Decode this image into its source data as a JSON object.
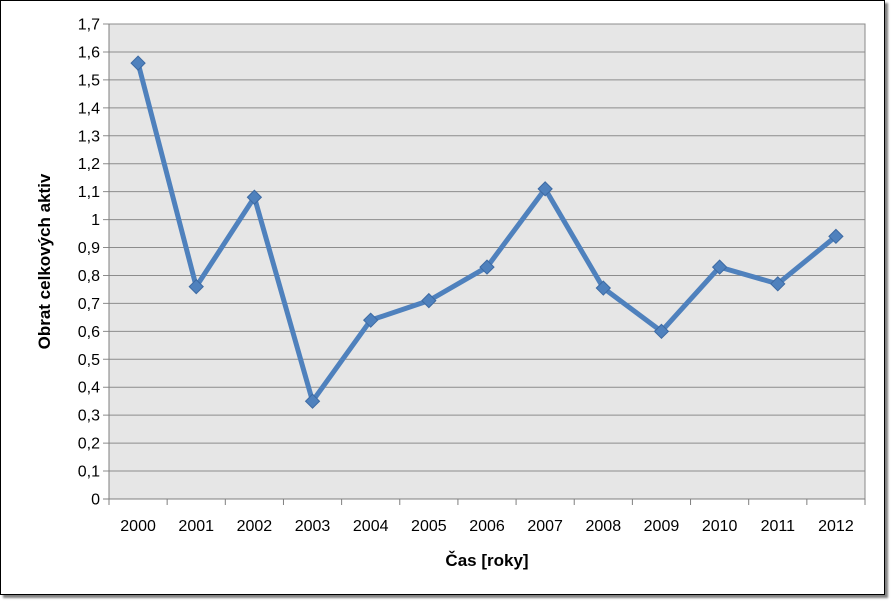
{
  "chart_data": {
    "type": "line",
    "title": "",
    "xlabel": "Čas [roky]",
    "ylabel": "Obrat celkových aktiv",
    "categories": [
      "2000",
      "2001",
      "2002",
      "2003",
      "2004",
      "2005",
      "2006",
      "2007",
      "2008",
      "2009",
      "2010",
      "2011",
      "2012"
    ],
    "series": [
      {
        "values": [
          1.56,
          0.76,
          1.08,
          0.35,
          0.64,
          0.71,
          0.83,
          1.11,
          0.755,
          0.6,
          0.83,
          0.77,
          0.94
        ]
      }
    ],
    "ylim": [
      0,
      1.7
    ],
    "ystep": 0.1,
    "ytick_labels": [
      "0",
      "0,1",
      "0,2",
      "0,3",
      "0,4",
      "0,5",
      "0,6",
      "0,7",
      "0,8",
      "0,9",
      "1",
      "1,1",
      "1,2",
      "1,3",
      "1,4",
      "1,5",
      "1,6",
      "1,7"
    ],
    "grid": true,
    "legend": "none",
    "colors": {
      "line": "#4F81BD",
      "plot_background": "#E6E6E6",
      "gridline": "#8C8C8C"
    },
    "marker": "diamond"
  }
}
